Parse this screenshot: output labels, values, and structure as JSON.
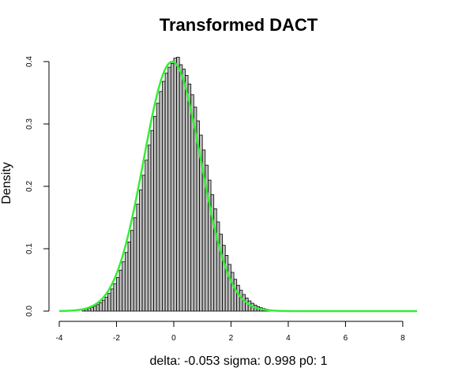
{
  "chart_data": {
    "type": "histogram",
    "title": "Transformed DACT",
    "xlabel": "delta: -0.053 sigma: 0.998 p0: 1",
    "ylabel": "Density",
    "xlim": [
      -4,
      8.5
    ],
    "ylim": [
      0,
      0.4
    ],
    "x_ticks": [
      "-4",
      "-2",
      "0",
      "2",
      "4",
      "6",
      "8"
    ],
    "y_ticks": [
      "0.0",
      "0.1",
      "0.2",
      "0.3",
      "0.4"
    ],
    "grid": false,
    "bar_fill": "#bebebe",
    "bar_stroke": "#000000",
    "curve_color": "#33ee33",
    "bin_width": 0.1,
    "bins_start": -3.2,
    "density": [
      0.0024,
      0.0033,
      0.0044,
      0.006,
      0.0079,
      0.0104,
      0.0136,
      0.0175,
      0.0224,
      0.0283,
      0.0355,
      0.044,
      0.054,
      0.0656,
      0.079,
      0.094,
      0.1109,
      0.1295,
      0.1497,
      0.1714,
      0.1942,
      0.2179,
      0.242,
      0.2661,
      0.2897,
      0.3123,
      0.3332,
      0.3521,
      0.3683,
      0.3814,
      0.391,
      0.397,
      0.4055,
      0.407,
      0.395,
      0.388,
      0.378,
      0.364,
      0.347,
      0.327,
      0.305,
      0.2822,
      0.2583,
      0.234,
      0.21,
      0.1866,
      0.1641,
      0.143,
      0.1234,
      0.1055,
      0.0893,
      0.0749,
      0.0621,
      0.051,
      0.0414,
      0.0334,
      0.0266,
      0.021,
      0.0164,
      0.0126,
      0.0096,
      0.0072,
      0.0054,
      0.004,
      0.0029,
      0.0021
    ],
    "curve": {
      "name": "",
      "mean": -0.053,
      "sd": 0.998,
      "x_range": [
        -4,
        8.5
      ]
    }
  }
}
